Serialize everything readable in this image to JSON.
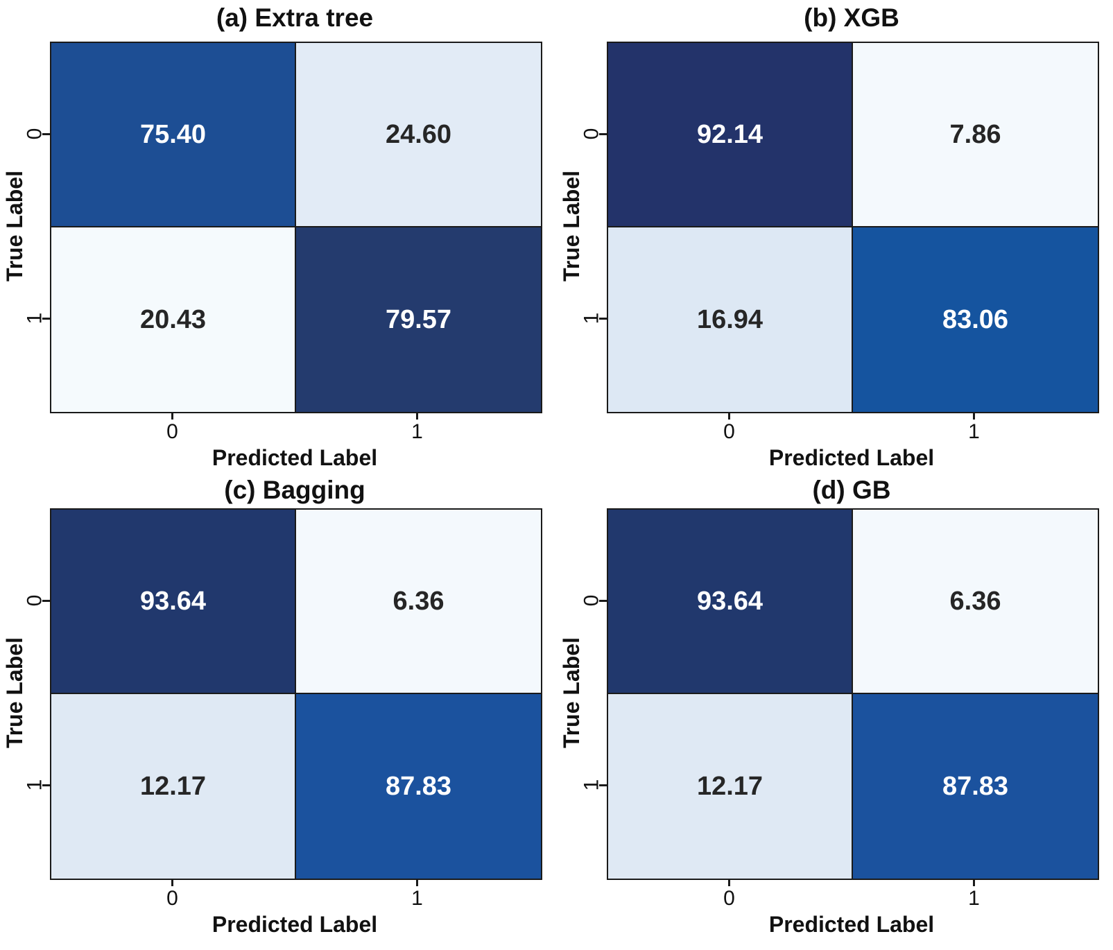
{
  "figure": {
    "xlabel": "Predicted Label",
    "ylabel": "True Label",
    "xticks": [
      "0",
      "1"
    ],
    "yticks": [
      "0",
      "1"
    ],
    "line_color": "#1a1a1a",
    "background": "#ffffff",
    "text_dark": "#262626",
    "text_light": "#ffffff"
  },
  "panels": [
    {
      "title": "(a) Extra tree",
      "cells": [
        {
          "value": "75.40",
          "bg": "#1d4e94",
          "fg": "#ffffff"
        },
        {
          "value": "24.60",
          "bg": "#e2ebf6",
          "fg": "#262626"
        },
        {
          "value": "20.43",
          "bg": "#f5fafd",
          "fg": "#262626"
        },
        {
          "value": "79.57",
          "bg": "#243b6e",
          "fg": "#ffffff"
        }
      ]
    },
    {
      "title": "(b) XGB",
      "cells": [
        {
          "value": "92.14",
          "bg": "#23336a",
          "fg": "#ffffff"
        },
        {
          "value": "7.86",
          "bg": "#f4f9fd",
          "fg": "#262626"
        },
        {
          "value": "16.94",
          "bg": "#dde8f4",
          "fg": "#262626"
        },
        {
          "value": "83.06",
          "bg": "#15549f",
          "fg": "#ffffff"
        }
      ]
    },
    {
      "title": "(c) Bagging",
      "cells": [
        {
          "value": "93.64",
          "bg": "#21386d",
          "fg": "#ffffff"
        },
        {
          "value": "6.36",
          "bg": "#f4f9fd",
          "fg": "#262626"
        },
        {
          "value": "12.17",
          "bg": "#dfe9f4",
          "fg": "#262626"
        },
        {
          "value": "87.83",
          "bg": "#1b529e",
          "fg": "#ffffff"
        }
      ]
    },
    {
      "title": "(d) GB",
      "cells": [
        {
          "value": "93.64",
          "bg": "#21386d",
          "fg": "#ffffff"
        },
        {
          "value": "6.36",
          "bg": "#f4f9fd",
          "fg": "#262626"
        },
        {
          "value": "12.17",
          "bg": "#dfe9f4",
          "fg": "#262626"
        },
        {
          "value": "87.83",
          "bg": "#1b529e",
          "fg": "#ffffff"
        }
      ]
    }
  ],
  "chart_data": [
    {
      "type": "heatmap",
      "title": "(a) Extra tree",
      "x_categories": [
        "0",
        "1"
      ],
      "y_categories": [
        "0",
        "1"
      ],
      "values": [
        [
          75.4,
          24.6
        ],
        [
          20.43,
          79.57
        ]
      ],
      "xlabel": "Predicted Label",
      "ylabel": "True Label",
      "colormap": "Blues",
      "value_units": "percent",
      "legend": "none",
      "grid": false
    },
    {
      "type": "heatmap",
      "title": "(b) XGB",
      "x_categories": [
        "0",
        "1"
      ],
      "y_categories": [
        "0",
        "1"
      ],
      "values": [
        [
          92.14,
          7.86
        ],
        [
          16.94,
          83.06
        ]
      ],
      "xlabel": "Predicted Label",
      "ylabel": "True Label",
      "colormap": "Blues",
      "value_units": "percent",
      "legend": "none",
      "grid": false
    },
    {
      "type": "heatmap",
      "title": "(c) Bagging",
      "x_categories": [
        "0",
        "1"
      ],
      "y_categories": [
        "0",
        "1"
      ],
      "values": [
        [
          93.64,
          6.36
        ],
        [
          12.17,
          87.83
        ]
      ],
      "xlabel": "Predicted Label",
      "ylabel": "True Label",
      "colormap": "Blues",
      "value_units": "percent",
      "legend": "none",
      "grid": false
    },
    {
      "type": "heatmap",
      "title": "(d) GB",
      "x_categories": [
        "0",
        "1"
      ],
      "y_categories": [
        "0",
        "1"
      ],
      "values": [
        [
          93.64,
          6.36
        ],
        [
          12.17,
          87.83
        ]
      ],
      "xlabel": "Predicted Label",
      "ylabel": "True Label",
      "colormap": "Blues",
      "value_units": "percent",
      "legend": "none",
      "grid": false
    }
  ]
}
